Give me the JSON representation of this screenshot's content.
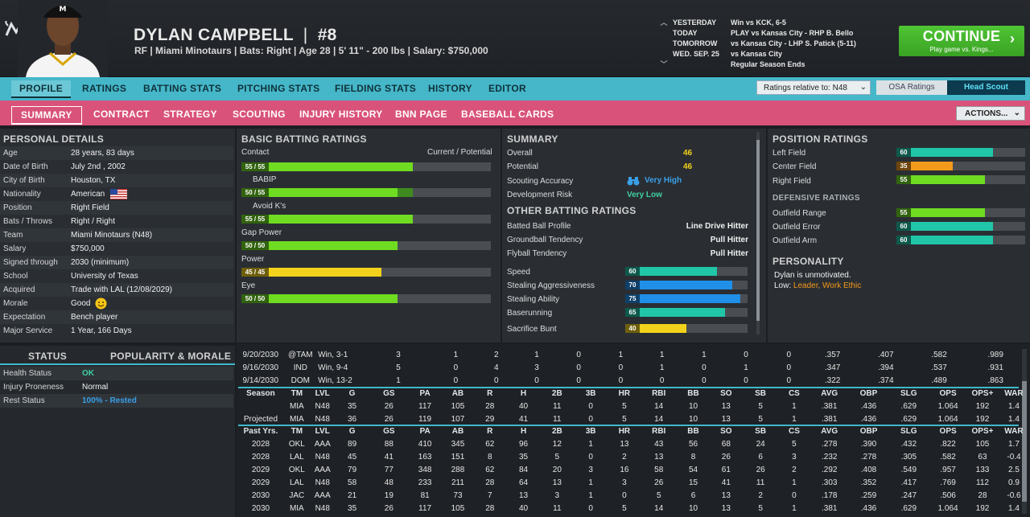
{
  "header": {
    "player_name": "DYLAN CAMPBELL",
    "divider": "|",
    "number": "#8",
    "subline": "RF | Miami Minotaurs  |  Bats: Right  |  Age 28  |  5' 11\" - 200 lbs  |  Salary: $750,000",
    "logo_icon": "team-logo-icon",
    "schedule": [
      {
        "day": "YESTERDAY",
        "text": "Win vs KCK, 6-5"
      },
      {
        "day": "TODAY",
        "text": "PLAY vs Kansas City - RHP B. Bello"
      },
      {
        "day": "TOMORROW",
        "text": "vs Kansas City - LHP S. Patick (5-11)"
      },
      {
        "day": "WED. SEP. 25",
        "text": "vs Kansas City"
      },
      {
        "day": "",
        "text": "Regular Season Ends"
      }
    ],
    "continue_label": "CONTINUE",
    "continue_sub": "Play game vs. Kings..."
  },
  "nav1": {
    "items": [
      "PROFILE",
      "RATINGS",
      "BATTING STATS",
      "PITCHING STATS",
      "FIELDING STATS",
      "HISTORY",
      "EDITOR"
    ],
    "ratings_relative": "Ratings relative to: N48",
    "osa": "OSA Ratings",
    "head_scout": "Head Scout"
  },
  "nav2": {
    "items": [
      "SUMMARY",
      "CONTRACT",
      "STRATEGY",
      "SCOUTING",
      "INJURY HISTORY",
      "BNN PAGE",
      "BASEBALL CARDS"
    ],
    "actions": "ACTIONS..."
  },
  "personal": {
    "title": "PERSONAL DETAILS",
    "rows": [
      {
        "k": "Age",
        "v": "28 years, 83 days"
      },
      {
        "k": "Date of Birth",
        "v": "July 2nd , 2002"
      },
      {
        "k": "City of Birth",
        "v": "Houston, TX"
      },
      {
        "k": "Nationality",
        "v": "American"
      },
      {
        "k": "Position",
        "v": "Right Field"
      },
      {
        "k": "Bats / Throws",
        "v": "Right / Right"
      },
      {
        "k": "Team",
        "v": "Miami Minotaurs (N48)"
      },
      {
        "k": "Salary",
        "v": "$750,000"
      },
      {
        "k": "Signed through",
        "v": "2030 (minimum)"
      },
      {
        "k": "School",
        "v": "University of Texas"
      },
      {
        "k": "Acquired",
        "v": "Trade with LAL (12/08/2029)"
      },
      {
        "k": "Morale",
        "v": "Good"
      },
      {
        "k": "Expectation",
        "v": "Bench player"
      },
      {
        "k": "Major Service",
        "v": "1 Year, 166 Days"
      }
    ]
  },
  "status": {
    "tab_status": "STATUS",
    "tab_popularity": "POPULARITY & MORALE",
    "rows": [
      {
        "k": "Health Status",
        "v": "OK",
        "color": "#3fd0a0"
      },
      {
        "k": "Injury Proneness",
        "v": "Normal",
        "color": "#e8e8e8"
      },
      {
        "k": "Rest Status",
        "v": "100% - Rested",
        "color": "#3aa0e8"
      }
    ]
  },
  "batting": {
    "title": "BASIC BATTING RATINGS",
    "col_hint": "Current / Potential",
    "ratings": [
      {
        "name": "Contact",
        "label": "55 / 55",
        "current": 55,
        "potential": 55,
        "color": "#6fdc22"
      },
      {
        "name": "BABIP",
        "label": "50 / 55",
        "current": 50,
        "potential": 55,
        "color": "#6fdc22"
      },
      {
        "name": "Avoid K's",
        "label": "55 / 55",
        "current": 55,
        "potential": 55,
        "color": "#6fdc22"
      },
      {
        "name": "Gap Power",
        "label": "50 / 50",
        "current": 50,
        "potential": 50,
        "color": "#6fdc22"
      },
      {
        "name": "Power",
        "label": "45 / 45",
        "current": 45,
        "potential": 45,
        "color": "#f3d21b"
      },
      {
        "name": "Eye",
        "label": "50 / 50",
        "current": 50,
        "potential": 50,
        "color": "#6fdc22"
      }
    ]
  },
  "summary": {
    "title": "SUMMARY",
    "overall_label": "Overall",
    "overall": "46",
    "potential_label": "Potential",
    "potential": "46",
    "accuracy_label": "Scouting Accuracy",
    "accuracy": "Very High",
    "risk_label": "Development Risk",
    "risk": "Very Low",
    "other_title": "OTHER BATTING RATINGS",
    "profile": [
      {
        "k": "Batted Ball Profile",
        "v": "Line Drive Hitter"
      },
      {
        "k": "Groundball Tendency",
        "v": "Pull Hitter"
      },
      {
        "k": "Flyball Tendency",
        "v": "Pull Hitter"
      }
    ],
    "speed": [
      {
        "k": "Speed",
        "v": 60,
        "color": "#21c6a8"
      },
      {
        "k": "Stealing Aggressiveness",
        "v": 70,
        "color": "#1f8fe8"
      },
      {
        "k": "Stealing Ability",
        "v": 75,
        "color": "#1f8fe8"
      },
      {
        "k": "Baserunning",
        "v": 65,
        "color": "#21c6a8"
      },
      {
        "k": "Sacrifice Bunt",
        "v": 40,
        "color": "#f3d21b"
      }
    ]
  },
  "position": {
    "title": "POSITION RATINGS",
    "rows": [
      {
        "k": "Left Field",
        "v": 60,
        "color": "#21c6a8"
      },
      {
        "k": "Center Field",
        "v": 35,
        "color": "#f39a1b"
      },
      {
        "k": "Right Field",
        "v": 55,
        "color": "#6fdc22"
      }
    ],
    "def_title": "DEFENSIVE RATINGS",
    "def": [
      {
        "k": "Outfield Range",
        "v": 55,
        "color": "#6fdc22"
      },
      {
        "k": "Outfield Error",
        "v": 60,
        "color": "#21c6a8"
      },
      {
        "k": "Outfield Arm",
        "v": 60,
        "color": "#21c6a8"
      }
    ],
    "personality_title": "PERSONALITY",
    "personality_line": "Dylan is unmotivated.",
    "low_label": "Low:",
    "low_traits": "Leader, Work Ethic"
  },
  "games": [
    [
      "9/20/2030",
      "@TAM",
      "Win, 3-1",
      "3",
      "1",
      "2",
      "1",
      "0",
      "1",
      "1",
      "1",
      "0",
      "0",
      ".357",
      ".407",
      ".582",
      ".989"
    ],
    [
      "9/16/2030",
      "IND",
      "Win, 9-4",
      "5",
      "0",
      "4",
      "3",
      "0",
      "0",
      "1",
      "0",
      "1",
      "0",
      ".347",
      ".394",
      ".537",
      ".931"
    ],
    [
      "9/14/2030",
      "DOM",
      "Win, 13-2",
      "1",
      "0",
      "0",
      "0",
      "0",
      "0",
      "0",
      "0",
      "0",
      "0",
      ".322",
      ".374",
      ".489",
      ".863"
    ]
  ],
  "season_headers": [
    "Season",
    "TM",
    "LVL",
    "G",
    "GS",
    "PA",
    "AB",
    "R",
    "H",
    "2B",
    "3B",
    "HR",
    "RBI",
    "BB",
    "SO",
    "SB",
    "CS",
    "AVG",
    "OBP",
    "SLG",
    "OPS",
    "OPS+",
    "WAR"
  ],
  "season_rows": [
    [
      "",
      "MIA",
      "N48",
      "35",
      "26",
      "117",
      "105",
      "28",
      "40",
      "11",
      "0",
      "5",
      "14",
      "10",
      "13",
      "5",
      "1",
      ".381",
      ".436",
      ".629",
      "1.064",
      "192",
      "1.4"
    ],
    [
      "Projected",
      "MIA",
      "N48",
      "36",
      "26",
      "119",
      "107",
      "29",
      "41",
      "11",
      "0",
      "5",
      "14",
      "10",
      "13",
      "5",
      "1",
      ".381",
      ".436",
      ".629",
      "1.064",
      "192",
      "1.4"
    ]
  ],
  "past_headers": [
    "Past Yrs.",
    "TM",
    "LVL",
    "G",
    "GS",
    "PA",
    "AB",
    "R",
    "H",
    "2B",
    "3B",
    "HR",
    "RBI",
    "BB",
    "SO",
    "SB",
    "CS",
    "AVG",
    "OBP",
    "SLG",
    "OPS",
    "OPS+",
    "WAR"
  ],
  "past_rows": [
    [
      "2028",
      "OKL",
      "AAA",
      "89",
      "88",
      "410",
      "345",
      "62",
      "96",
      "12",
      "1",
      "13",
      "43",
      "56",
      "68",
      "24",
      "5",
      ".278",
      ".390",
      ".432",
      ".822",
      "105",
      "1.7"
    ],
    [
      "2028",
      "LAL",
      "N48",
      "45",
      "41",
      "163",
      "151",
      "8",
      "35",
      "5",
      "0",
      "2",
      "13",
      "8",
      "26",
      "6",
      "3",
      ".232",
      ".278",
      ".305",
      ".582",
      "63",
      "-0.4"
    ],
    [
      "2029",
      "OKL",
      "AAA",
      "79",
      "77",
      "348",
      "288",
      "62",
      "84",
      "20",
      "3",
      "16",
      "58",
      "54",
      "61",
      "26",
      "2",
      ".292",
      ".408",
      ".549",
      ".957",
      "133",
      "2.5"
    ],
    [
      "2029",
      "LAL",
      "N48",
      "58",
      "48",
      "233",
      "211",
      "28",
      "64",
      "13",
      "1",
      "3",
      "26",
      "15",
      "41",
      "11",
      "1",
      ".303",
      ".352",
      ".417",
      ".769",
      "112",
      "0.9"
    ],
    [
      "2030",
      "JAC",
      "AAA",
      "21",
      "19",
      "81",
      "73",
      "7",
      "13",
      "3",
      "1",
      "0",
      "5",
      "6",
      "13",
      "2",
      "0",
      ".178",
      ".259",
      ".247",
      ".506",
      "28",
      "-0.6"
    ],
    [
      "2030",
      "MIA",
      "N48",
      "35",
      "26",
      "117",
      "105",
      "28",
      "40",
      "11",
      "0",
      "5",
      "14",
      "10",
      "13",
      "5",
      "1",
      ".381",
      ".436",
      ".629",
      "1.064",
      "192",
      "1.4"
    ]
  ]
}
